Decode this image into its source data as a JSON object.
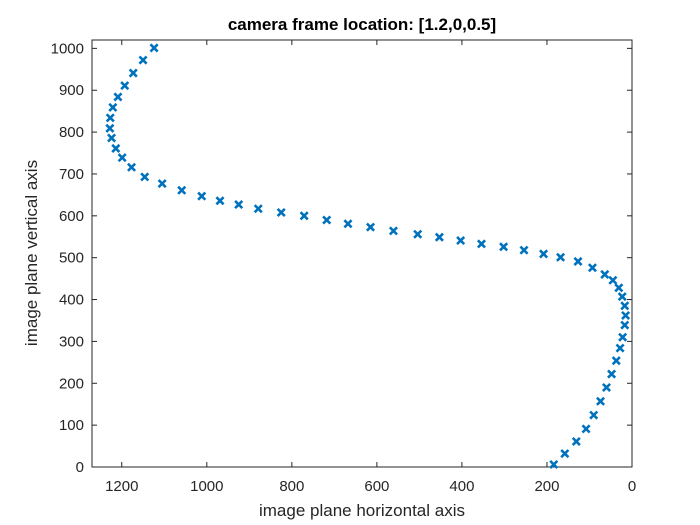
{
  "chart_data": {
    "type": "scatter",
    "title": "camera frame location: [1.2,0,0.5]",
    "xlabel": "image plane horizontal axis",
    "ylabel": "image plane vertical axis",
    "xlim": [
      0,
      1270
    ],
    "ylim": [
      0,
      1020
    ],
    "x_reversed": true,
    "xticks": [
      0,
      200,
      400,
      600,
      800,
      1000,
      1200
    ],
    "yticks": [
      0,
      100,
      200,
      300,
      400,
      500,
      600,
      700,
      800,
      900,
      1000
    ],
    "grid": false,
    "marker": "x",
    "marker_color": "#0072BD",
    "points": {
      "x": [
        1124,
        1150,
        1173,
        1193,
        1209,
        1221,
        1227,
        1228,
        1224,
        1214,
        1199,
        1177,
        1146,
        1105,
        1059,
        1012,
        969,
        925,
        879,
        825,
        771,
        718,
        668,
        615,
        561,
        504,
        453,
        403,
        354,
        302,
        254,
        208,
        168,
        127,
        93,
        64,
        45,
        31,
        23,
        17,
        15,
        17,
        22,
        28,
        37,
        48,
        60,
        74,
        90,
        108,
        131,
        158,
        184
      ],
      "y": [
        1001,
        972,
        941,
        911,
        884,
        859,
        834,
        809,
        786,
        761,
        739,
        716,
        693,
        677,
        661,
        647,
        636,
        627,
        617,
        608,
        600,
        590,
        581,
        573,
        564,
        556,
        549,
        541,
        533,
        526,
        518,
        509,
        501,
        491,
        476,
        460,
        446,
        428,
        407,
        385,
        362,
        339,
        310,
        284,
        254,
        222,
        190,
        157,
        124,
        91,
        61,
        32,
        6
      ]
    }
  }
}
